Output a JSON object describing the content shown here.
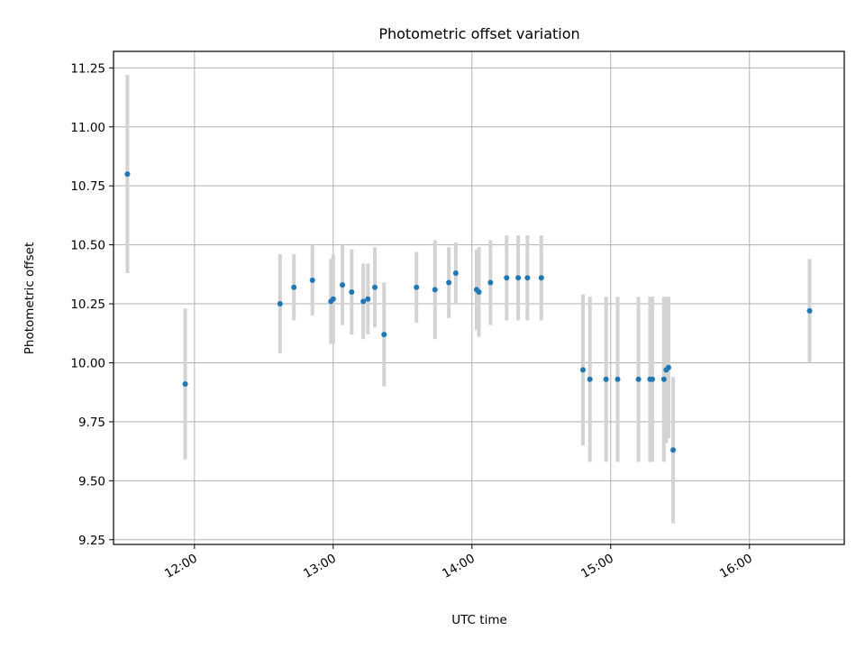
{
  "chart_data": {
    "type": "scatter",
    "title": "Photometric offset variation",
    "xlabel": "UTC time",
    "ylabel": "Photometric offset",
    "x_ticks": [
      "12:00",
      "13:00",
      "14:00",
      "15:00",
      "16:00"
    ],
    "y_ticks": [
      "9.25",
      "9.50",
      "9.75",
      "10.00",
      "10.25",
      "10.50",
      "10.75",
      "11.00",
      "11.25"
    ],
    "xlim": [
      "11:25",
      "16:41"
    ],
    "ylim": [
      9.23,
      11.32
    ],
    "grid": true,
    "marker_color": "#1f77b4",
    "errorbar_color": "#d3d3d3",
    "points": [
      {
        "t": "11:31",
        "y": 10.8,
        "err": 0.42
      },
      {
        "t": "11:56",
        "y": 9.91,
        "err": 0.32
      },
      {
        "t": "12:37",
        "y": 10.25,
        "err": 0.21
      },
      {
        "t": "12:43",
        "y": 10.32,
        "err": 0.14
      },
      {
        "t": "12:51",
        "y": 10.35,
        "err": 0.15
      },
      {
        "t": "12:59",
        "y": 10.26,
        "err": 0.18
      },
      {
        "t": "13:00",
        "y": 10.27,
        "err": 0.19
      },
      {
        "t": "13:04",
        "y": 10.33,
        "err": 0.17
      },
      {
        "t": "13:08",
        "y": 10.3,
        "err": 0.18
      },
      {
        "t": "13:13",
        "y": 10.26,
        "err": 0.16
      },
      {
        "t": "13:15",
        "y": 10.27,
        "err": 0.15
      },
      {
        "t": "13:18",
        "y": 10.32,
        "err": 0.17
      },
      {
        "t": "13:22",
        "y": 10.12,
        "err": 0.22
      },
      {
        "t": "13:36",
        "y": 10.32,
        "err": 0.15
      },
      {
        "t": "13:44",
        "y": 10.31,
        "err": 0.21
      },
      {
        "t": "13:50",
        "y": 10.34,
        "err": 0.15
      },
      {
        "t": "13:53",
        "y": 10.38,
        "err": 0.13
      },
      {
        "t": "14:02",
        "y": 10.31,
        "err": 0.17
      },
      {
        "t": "14:03",
        "y": 10.3,
        "err": 0.19
      },
      {
        "t": "14:08",
        "y": 10.34,
        "err": 0.18
      },
      {
        "t": "14:15",
        "y": 10.36,
        "err": 0.18
      },
      {
        "t": "14:20",
        "y": 10.36,
        "err": 0.18
      },
      {
        "t": "14:24",
        "y": 10.36,
        "err": 0.18
      },
      {
        "t": "14:30",
        "y": 10.36,
        "err": 0.18
      },
      {
        "t": "14:48",
        "y": 9.97,
        "err": 0.32
      },
      {
        "t": "14:51",
        "y": 9.93,
        "err": 0.35
      },
      {
        "t": "14:58",
        "y": 9.93,
        "err": 0.35
      },
      {
        "t": "15:03",
        "y": 9.93,
        "err": 0.35
      },
      {
        "t": "15:12",
        "y": 9.93,
        "err": 0.35
      },
      {
        "t": "15:17",
        "y": 9.93,
        "err": 0.35
      },
      {
        "t": "15:18",
        "y": 9.93,
        "err": 0.35
      },
      {
        "t": "15:23",
        "y": 9.93,
        "err": 0.35
      },
      {
        "t": "15:24",
        "y": 9.97,
        "err": 0.31
      },
      {
        "t": "15:25",
        "y": 9.98,
        "err": 0.3
      },
      {
        "t": "15:27",
        "y": 9.63,
        "err": 0.31
      },
      {
        "t": "16:26",
        "y": 10.22,
        "err": 0.22
      }
    ]
  }
}
